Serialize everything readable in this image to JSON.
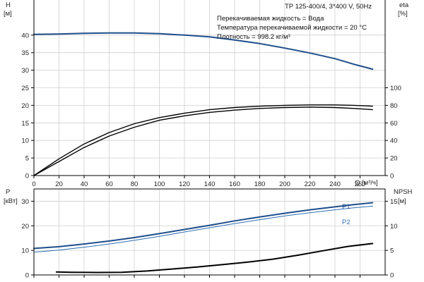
{
  "chart_data": [
    {
      "type": "line",
      "panel": "head-efficiency",
      "header": "TP 125-400/4, 3*400 V, 50Hz",
      "info_lines": [
        "Перекачиваемая жидкость = Вода",
        "Температура перекачиваемой жидкости = 20 °C",
        "Плотность = 998.2 кг/м³"
      ],
      "xlabel": "Q [м³/ч]",
      "x_ticks": [
        0,
        20,
        40,
        60,
        80,
        100,
        120,
        140,
        160,
        180,
        200,
        220,
        240,
        260
      ],
      "xlim": [
        0,
        280
      ],
      "y_left": {
        "label_line1": "H",
        "label_line2": "[м]",
        "ticks": [
          0,
          5,
          10,
          15,
          20,
          25,
          30,
          35,
          40
        ],
        "ylim": [
          0,
          50
        ]
      },
      "y_right": {
        "label_line1": "eta",
        "label_line2": "[%]",
        "ticks": [
          0,
          20,
          40,
          60,
          80,
          100
        ],
        "ylim": [
          0,
          200
        ]
      },
      "grid": true,
      "colors": {
        "head": "#1f4e8c",
        "eta": "#000000",
        "grid": "#cfcfcf"
      },
      "series": [
        {
          "axis": "left",
          "color": "#1f4e8c",
          "width": 2,
          "points": [
            [
              0,
              40.2
            ],
            [
              20,
              40.3
            ],
            [
              40,
              40.5
            ],
            [
              60,
              40.6
            ],
            [
              80,
              40.6
            ],
            [
              100,
              40.4
            ],
            [
              120,
              40.0
            ],
            [
              140,
              39.5
            ],
            [
              160,
              38.6
            ],
            [
              180,
              37.6
            ],
            [
              200,
              36.3
            ],
            [
              220,
              34.9
            ],
            [
              240,
              33.3
            ],
            [
              255,
              31.7
            ],
            [
              270,
              30.3
            ]
          ]
        },
        {
          "axis": "right",
          "color": "#000000",
          "width": 1.4,
          "points": [
            [
              0,
              0
            ],
            [
              20,
              19
            ],
            [
              40,
              36
            ],
            [
              60,
              49
            ],
            [
              80,
              59
            ],
            [
              100,
              66
            ],
            [
              120,
              71
            ],
            [
              140,
              75
            ],
            [
              160,
              77.5
            ],
            [
              180,
              79
            ],
            [
              200,
              80
            ],
            [
              220,
              80.5
            ],
            [
              240,
              80.5
            ],
            [
              255,
              80
            ],
            [
              270,
              79
            ]
          ]
        },
        {
          "axis": "right",
          "color": "#000000",
          "width": 1.4,
          "points": [
            [
              0,
              0
            ],
            [
              20,
              16
            ],
            [
              40,
              32
            ],
            [
              60,
              45
            ],
            [
              80,
              55
            ],
            [
              100,
              63
            ],
            [
              120,
              68
            ],
            [
              140,
              72
            ],
            [
              160,
              74.5
            ],
            [
              180,
              76.5
            ],
            [
              200,
              77.5
            ],
            [
              220,
              78
            ],
            [
              240,
              77.5
            ],
            [
              255,
              76.5
            ],
            [
              270,
              75
            ]
          ]
        }
      ]
    },
    {
      "type": "line",
      "panel": "power-npsh",
      "xlim": [
        0,
        280
      ],
      "y_left": {
        "label_line1": "P",
        "label_line2": "[кВт]",
        "ticks": [
          0,
          10,
          20,
          30
        ],
        "ylim": [
          0,
          35
        ]
      },
      "y_right": {
        "label_line1": "NPSH",
        "label_line2": "[м]",
        "ticks": [
          0,
          5,
          10,
          15
        ],
        "ylim": [
          0,
          17.5
        ]
      },
      "grid": true,
      "colors": {
        "p1": "#1f4e8c",
        "p2": "#2f6fb2",
        "npsh": "#000000"
      },
      "series": [
        {
          "name": "P1",
          "axis": "left",
          "color": "#1f4e8c",
          "width": 2,
          "points": [
            [
              0,
              10.8
            ],
            [
              20,
              11.5
            ],
            [
              40,
              12.6
            ],
            [
              60,
              13.8
            ],
            [
              80,
              15.2
            ],
            [
              100,
              16.8
            ],
            [
              120,
              18.5
            ],
            [
              140,
              20.2
            ],
            [
              160,
              22.0
            ],
            [
              180,
              23.6
            ],
            [
              200,
              25.1
            ],
            [
              220,
              26.5
            ],
            [
              240,
              27.7
            ],
            [
              255,
              28.6
            ],
            [
              270,
              29.4
            ]
          ]
        },
        {
          "name": "P2",
          "axis": "left",
          "color": "#2f6fb2",
          "width": 1,
          "points": [
            [
              0,
              9.3
            ],
            [
              20,
              10.1
            ],
            [
              40,
              11.3
            ],
            [
              60,
              12.6
            ],
            [
              80,
              14.1
            ],
            [
              100,
              15.7
            ],
            [
              120,
              17.5
            ],
            [
              140,
              19.2
            ],
            [
              160,
              20.9
            ],
            [
              180,
              22.5
            ],
            [
              200,
              24.0
            ],
            [
              220,
              25.3
            ],
            [
              240,
              26.5
            ],
            [
              255,
              27.3
            ],
            [
              270,
              28.0
            ]
          ]
        },
        {
          "axis": "right",
          "color": "#000000",
          "width": 2,
          "points": [
            [
              18,
              0.6
            ],
            [
              30,
              0.55
            ],
            [
              50,
              0.5
            ],
            [
              70,
              0.55
            ],
            [
              90,
              0.8
            ],
            [
              110,
              1.2
            ],
            [
              130,
              1.6
            ],
            [
              150,
              2.1
            ],
            [
              170,
              2.6
            ],
            [
              190,
              3.2
            ],
            [
              210,
              4.0
            ],
            [
              230,
              4.9
            ],
            [
              250,
              5.8
            ],
            [
              270,
              6.4
            ]
          ]
        }
      ]
    }
  ]
}
